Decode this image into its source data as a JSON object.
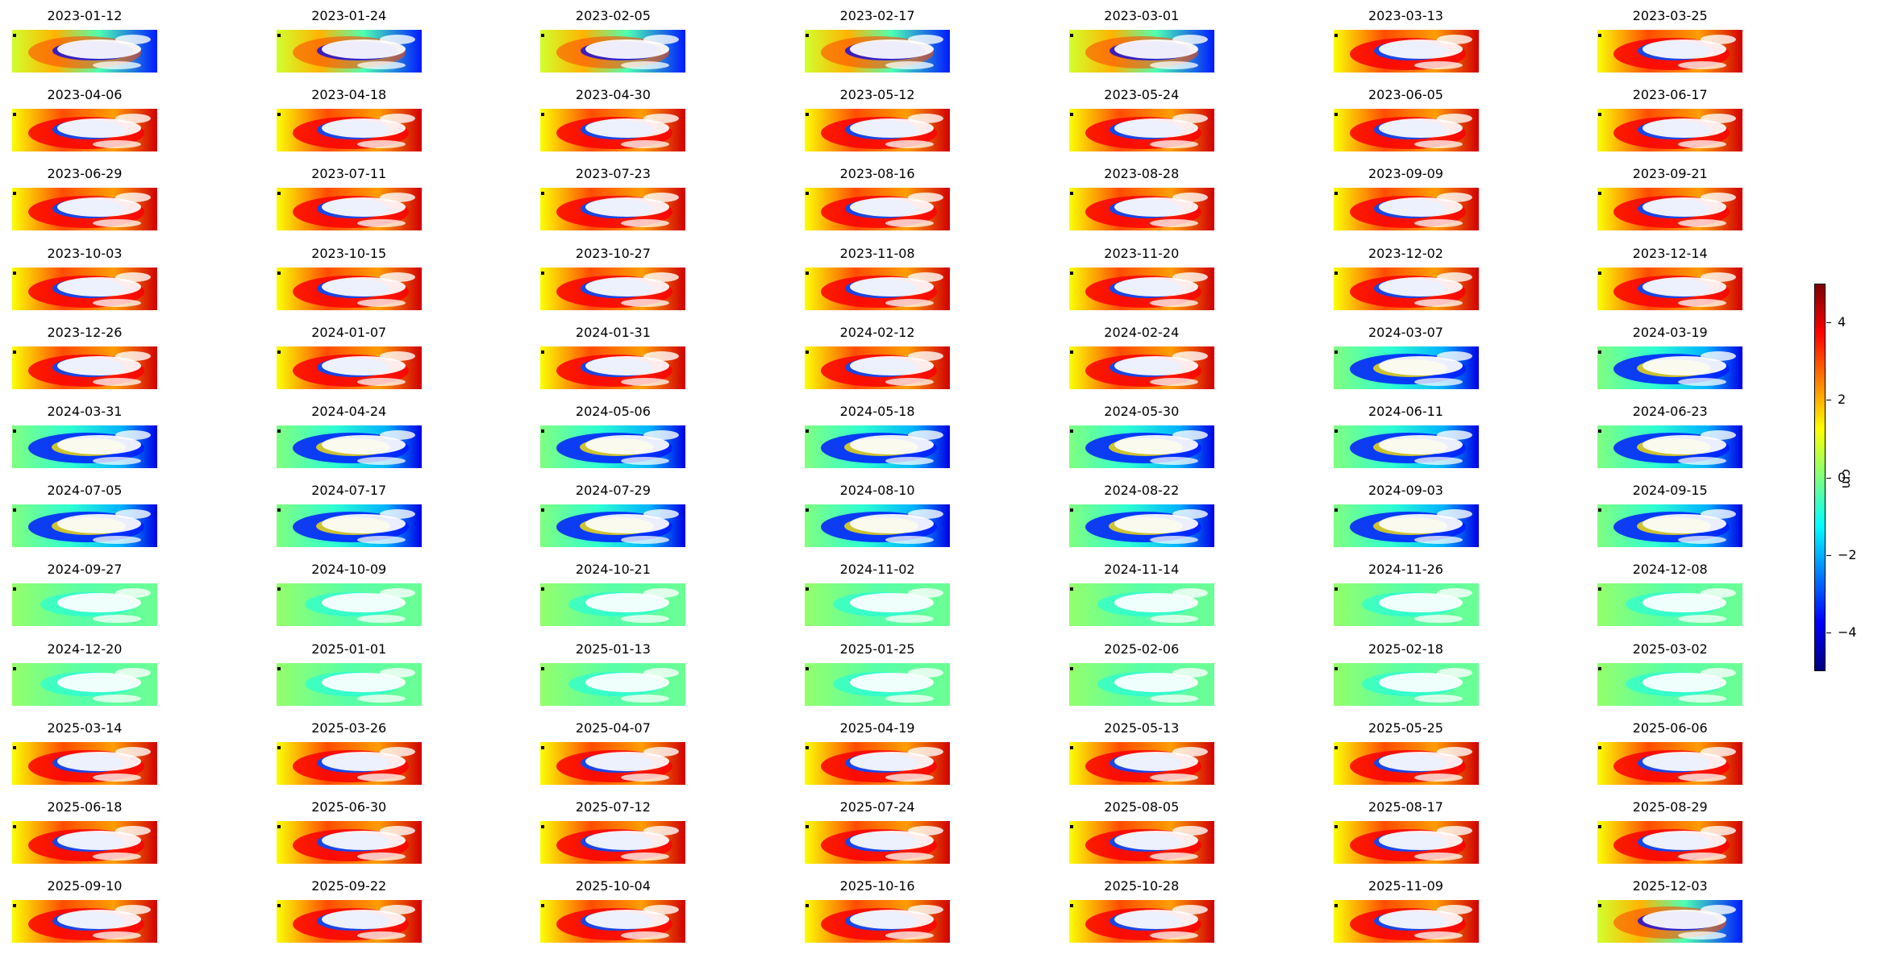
{
  "chart_data": {
    "type": "heatmap",
    "description_type": "small-multiples displacement maps",
    "columns": 7,
    "panels": [
      {
        "date": "2023-01-12",
        "mode": "mixed"
      },
      {
        "date": "2023-01-24",
        "mode": "mixed"
      },
      {
        "date": "2023-02-05",
        "mode": "mixed"
      },
      {
        "date": "2023-02-17",
        "mode": "mixed"
      },
      {
        "date": "2023-03-01",
        "mode": "mixed"
      },
      {
        "date": "2023-03-13",
        "mode": "red"
      },
      {
        "date": "2023-03-25",
        "mode": "red"
      },
      {
        "date": "2023-04-06",
        "mode": "red"
      },
      {
        "date": "2023-04-18",
        "mode": "red"
      },
      {
        "date": "2023-04-30",
        "mode": "red"
      },
      {
        "date": "2023-05-12",
        "mode": "red"
      },
      {
        "date": "2023-05-24",
        "mode": "red"
      },
      {
        "date": "2023-06-05",
        "mode": "red"
      },
      {
        "date": "2023-06-17",
        "mode": "red"
      },
      {
        "date": "2023-06-29",
        "mode": "red"
      },
      {
        "date": "2023-07-11",
        "mode": "red"
      },
      {
        "date": "2023-07-23",
        "mode": "red"
      },
      {
        "date": "2023-08-16",
        "mode": "red"
      },
      {
        "date": "2023-08-28",
        "mode": "red"
      },
      {
        "date": "2023-09-09",
        "mode": "red"
      },
      {
        "date": "2023-09-21",
        "mode": "red"
      },
      {
        "date": "2023-10-03",
        "mode": "red"
      },
      {
        "date": "2023-10-15",
        "mode": "red"
      },
      {
        "date": "2023-10-27",
        "mode": "red"
      },
      {
        "date": "2023-11-08",
        "mode": "red"
      },
      {
        "date": "2023-11-20",
        "mode": "red"
      },
      {
        "date": "2023-12-02",
        "mode": "red"
      },
      {
        "date": "2023-12-14",
        "mode": "red"
      },
      {
        "date": "2023-12-26",
        "mode": "red"
      },
      {
        "date": "2024-01-07",
        "mode": "red"
      },
      {
        "date": "2024-01-31",
        "mode": "red"
      },
      {
        "date": "2024-02-12",
        "mode": "red"
      },
      {
        "date": "2024-02-24",
        "mode": "red"
      },
      {
        "date": "2024-03-07",
        "mode": "blue"
      },
      {
        "date": "2024-03-19",
        "mode": "blue"
      },
      {
        "date": "2024-03-31",
        "mode": "blue"
      },
      {
        "date": "2024-04-24",
        "mode": "blue"
      },
      {
        "date": "2024-05-06",
        "mode": "blue"
      },
      {
        "date": "2024-05-18",
        "mode": "blue"
      },
      {
        "date": "2024-05-30",
        "mode": "blue"
      },
      {
        "date": "2024-06-11",
        "mode": "blue"
      },
      {
        "date": "2024-06-23",
        "mode": "blue"
      },
      {
        "date": "2024-07-05",
        "mode": "blue"
      },
      {
        "date": "2024-07-17",
        "mode": "blue"
      },
      {
        "date": "2024-07-29",
        "mode": "blue"
      },
      {
        "date": "2024-08-10",
        "mode": "blue"
      },
      {
        "date": "2024-08-22",
        "mode": "blue"
      },
      {
        "date": "2024-09-03",
        "mode": "blue"
      },
      {
        "date": "2024-09-15",
        "mode": "blue"
      },
      {
        "date": "2024-09-27",
        "mode": "light"
      },
      {
        "date": "2024-10-09",
        "mode": "light"
      },
      {
        "date": "2024-10-21",
        "mode": "light"
      },
      {
        "date": "2024-11-02",
        "mode": "light"
      },
      {
        "date": "2024-11-14",
        "mode": "light"
      },
      {
        "date": "2024-11-26",
        "mode": "light"
      },
      {
        "date": "2024-12-08",
        "mode": "light"
      },
      {
        "date": "2024-12-20",
        "mode": "light"
      },
      {
        "date": "2025-01-01",
        "mode": "light"
      },
      {
        "date": "2025-01-13",
        "mode": "light"
      },
      {
        "date": "2025-01-25",
        "mode": "light"
      },
      {
        "date": "2025-02-06",
        "mode": "light"
      },
      {
        "date": "2025-02-18",
        "mode": "light"
      },
      {
        "date": "2025-03-02",
        "mode": "light"
      },
      {
        "date": "2025-03-14",
        "mode": "red"
      },
      {
        "date": "2025-03-26",
        "mode": "red"
      },
      {
        "date": "2025-04-07",
        "mode": "red"
      },
      {
        "date": "2025-04-19",
        "mode": "red"
      },
      {
        "date": "2025-05-13",
        "mode": "red"
      },
      {
        "date": "2025-05-25",
        "mode": "red"
      },
      {
        "date": "2025-06-06",
        "mode": "red"
      },
      {
        "date": "2025-06-18",
        "mode": "red"
      },
      {
        "date": "2025-06-30",
        "mode": "red"
      },
      {
        "date": "2025-07-12",
        "mode": "red"
      },
      {
        "date": "2025-07-24",
        "mode": "red"
      },
      {
        "date": "2025-08-05",
        "mode": "red"
      },
      {
        "date": "2025-08-17",
        "mode": "red"
      },
      {
        "date": "2025-08-29",
        "mode": "red"
      },
      {
        "date": "2025-09-10",
        "mode": "red"
      },
      {
        "date": "2025-09-22",
        "mode": "red"
      },
      {
        "date": "2025-10-04",
        "mode": "red"
      },
      {
        "date": "2025-10-16",
        "mode": "red"
      },
      {
        "date": "2025-10-28",
        "mode": "red"
      },
      {
        "date": "2025-11-09",
        "mode": "red"
      },
      {
        "date": "2025-12-03",
        "mode": "mixed"
      }
    ],
    "colorbar": {
      "label": "cm",
      "range": [
        -5,
        5
      ],
      "ticks": [
        4,
        2,
        0,
        -2,
        -4
      ],
      "tick_labels": [
        "4",
        "2",
        "0",
        "−2",
        "−4"
      ],
      "colormap": "jet",
      "colormap_stops": [
        "#00007f",
        "#0000ff",
        "#007fff",
        "#00ffff",
        "#7fff7f",
        "#ffff00",
        "#ff7f00",
        "#ff0000",
        "#7f0000"
      ]
    }
  }
}
